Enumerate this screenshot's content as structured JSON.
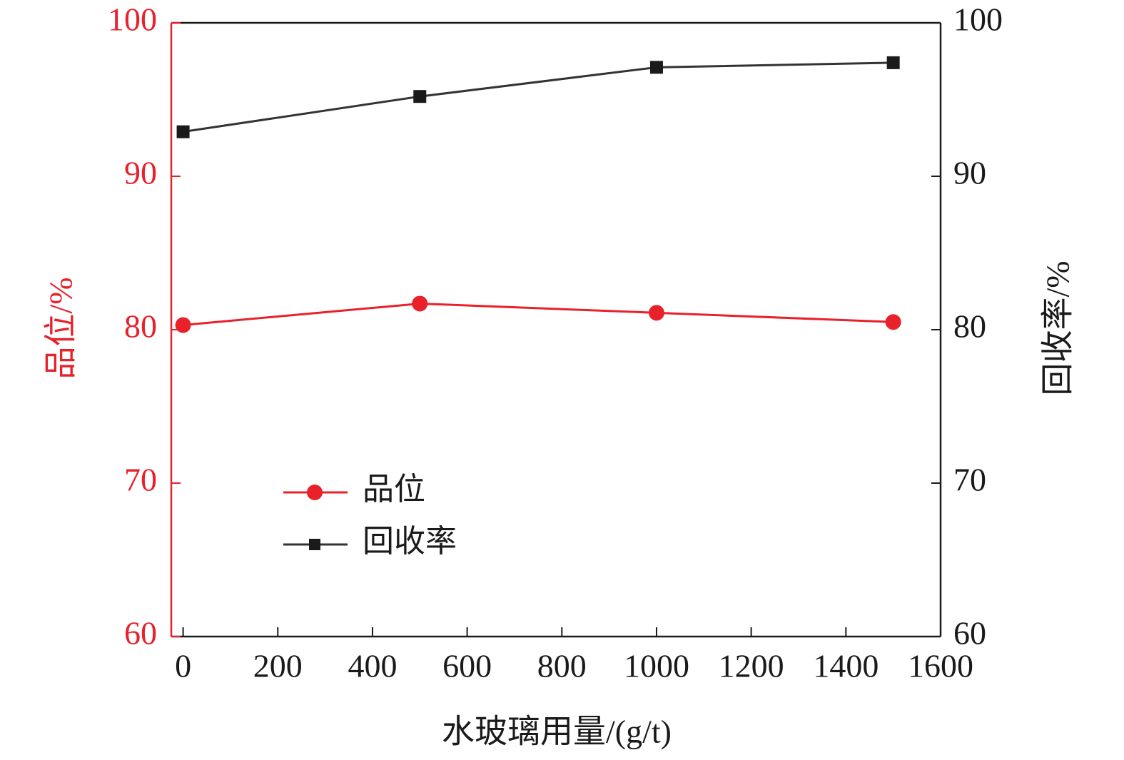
{
  "chart_data": {
    "type": "line",
    "title": "",
    "xlabel": "水玻璃用量/(g/t)",
    "ylabel_left": "品位/%",
    "ylabel_right": "回收率/%",
    "xlim": [
      -25,
      1600
    ],
    "ylim_left": [
      60,
      100
    ],
    "ylim_right": [
      60,
      100
    ],
    "x_ticks": [
      0,
      200,
      400,
      600,
      800,
      1000,
      1200,
      1400,
      1600
    ],
    "x_tick_labels": [
      "0",
      "200",
      "400",
      "600",
      "800",
      "1000",
      "1200",
      "1400",
      "1600"
    ],
    "y_left_ticks": [
      60,
      70,
      80,
      90,
      100
    ],
    "y_left_tick_labels": [
      "60",
      "70",
      "80",
      "90",
      "100"
    ],
    "y_right_ticks": [
      60,
      70,
      80,
      90,
      100
    ],
    "y_right_tick_labels": [
      "60",
      "70",
      "80",
      "90",
      "100"
    ],
    "x": [
      0,
      500,
      1000,
      1500
    ],
    "series": [
      {
        "name": "品位",
        "axis": "left",
        "marker": "circle",
        "color": "#e8212b",
        "values": [
          80.3,
          81.7,
          81.1,
          80.5
        ]
      },
      {
        "name": "回收率",
        "axis": "right",
        "marker": "square",
        "color": "#1a1a1a",
        "values": [
          92.9,
          95.2,
          97.1,
          97.4
        ]
      }
    ],
    "legend_position": "lower-left",
    "grid": false,
    "colors": {
      "left_axis": "#e8212b",
      "right_axis": "#1a1a1a"
    }
  }
}
